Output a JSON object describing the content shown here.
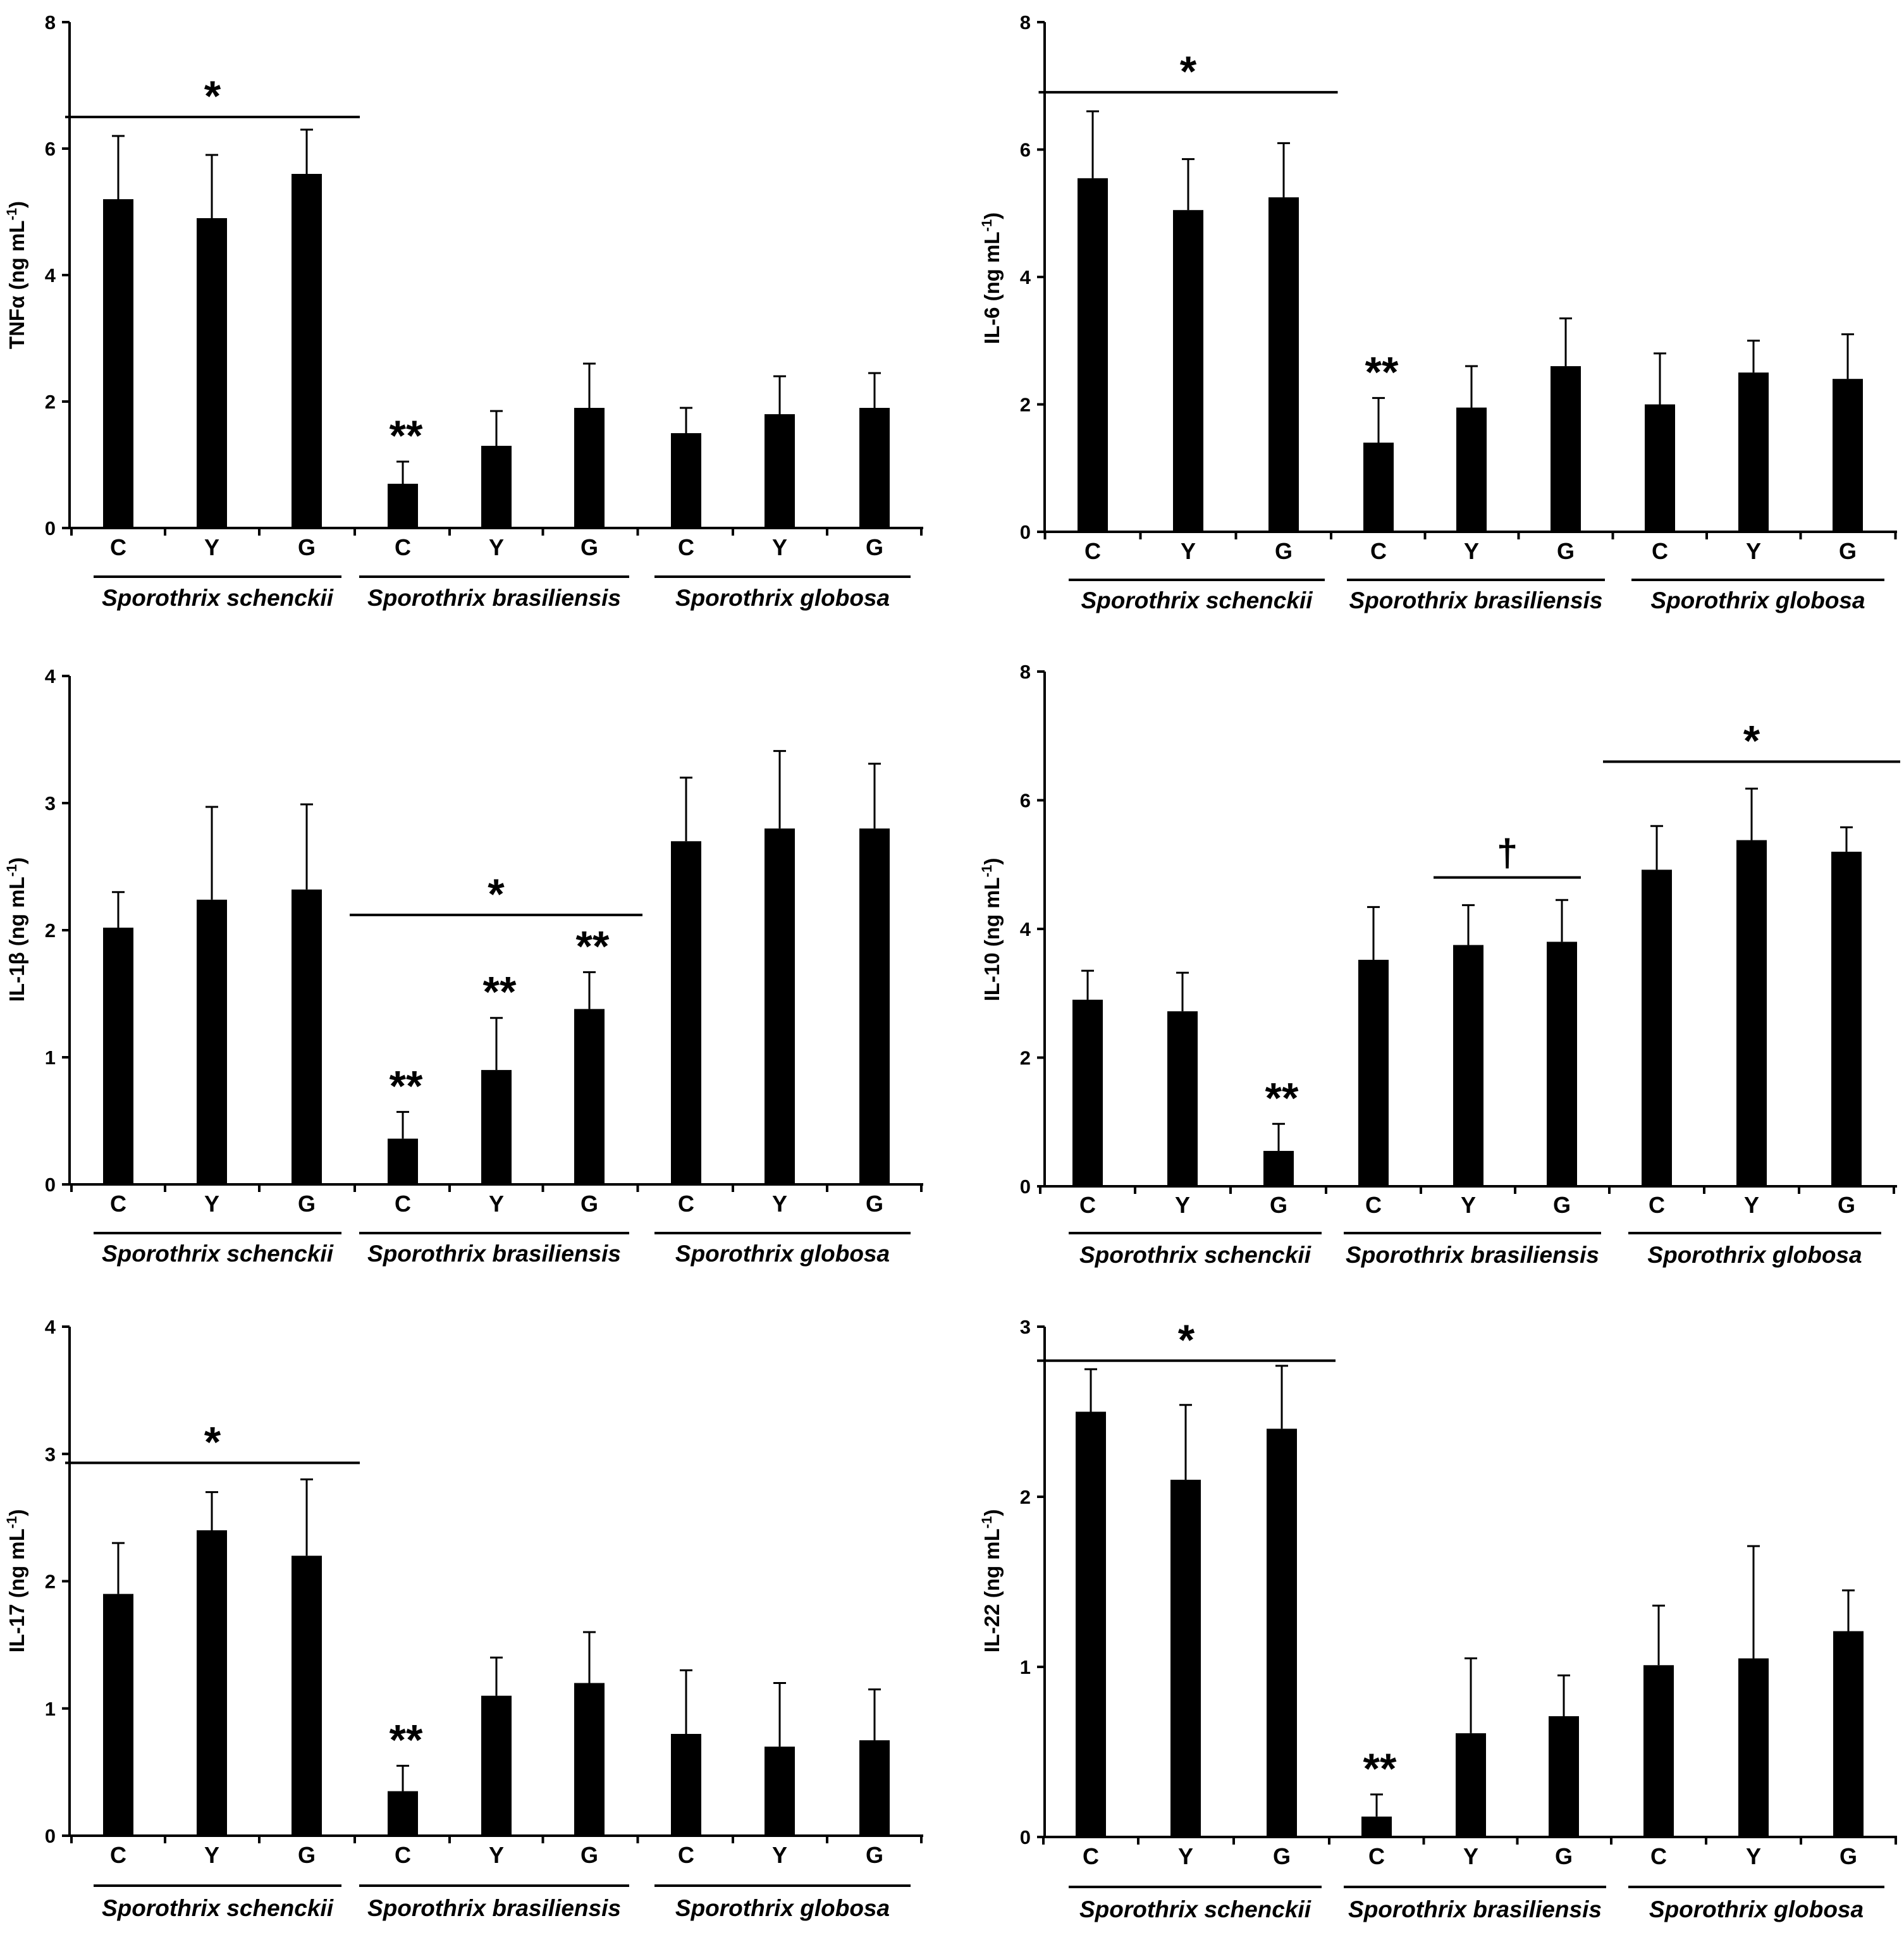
{
  "figure": {
    "bar_color": "#000000",
    "background": "#ffffff"
  },
  "chart_data": [
    {
      "type": "bar",
      "ylabel": "TNFα (ng mL",
      "ylabel_sup": "-1",
      "ylabel_end": ")",
      "ylim": [
        0,
        8
      ],
      "yticks": [
        "0",
        "2",
        "4",
        "6",
        "8"
      ],
      "ytick_values": [
        0,
        2,
        4,
        6,
        8
      ],
      "categories": [
        "C",
        "Y",
        "G",
        "C",
        "Y",
        "G",
        "C",
        "Y",
        "G"
      ],
      "groups": [
        "Sporothrix schenckii",
        "Sporothrix brasiliensis",
        "Sporothrix globosa"
      ],
      "values": [
        5.2,
        4.9,
        5.6,
        0.7,
        1.3,
        1.9,
        1.5,
        1.8,
        1.9
      ],
      "errors": [
        1.0,
        1.0,
        0.7,
        0.35,
        0.55,
        0.7,
        0.4,
        0.6,
        0.55
      ],
      "bar_marks": [
        {
          "index": 3,
          "text": "**"
        }
      ],
      "bracket_marks": [
        {
          "from": 0,
          "to": 2,
          "y": 6.5,
          "text": "*"
        }
      ]
    },
    {
      "type": "bar",
      "ylabel": "IL-6 (ng mL",
      "ylabel_sup": "-1",
      "ylabel_end": ")",
      "ylim": [
        0,
        8
      ],
      "yticks": [
        "0",
        "2",
        "4",
        "6",
        "8"
      ],
      "ytick_values": [
        0,
        2,
        4,
        6,
        8
      ],
      "categories": [
        "C",
        "Y",
        "G",
        "C",
        "Y",
        "G",
        "C",
        "Y",
        "G"
      ],
      "groups": [
        "Sporothrix schenckii",
        "Sporothrix brasiliensis",
        "Sporothrix globosa"
      ],
      "values": [
        5.55,
        5.05,
        5.25,
        1.4,
        1.95,
        2.6,
        2.0,
        2.5,
        2.4
      ],
      "errors": [
        1.05,
        0.8,
        0.85,
        0.7,
        0.65,
        0.75,
        0.8,
        0.5,
        0.7
      ],
      "bar_marks": [
        {
          "index": 3,
          "text": "**"
        }
      ],
      "bracket_marks": [
        {
          "from": 0,
          "to": 2,
          "y": 6.9,
          "text": "*"
        }
      ]
    },
    {
      "type": "bar",
      "ylabel": "IL-1β (ng mL",
      "ylabel_sup": "-1",
      "ylabel_end": ")",
      "ylim": [
        0,
        4
      ],
      "yticks": [
        "0",
        "1",
        "2",
        "3",
        "4"
      ],
      "ytick_values": [
        0,
        1,
        2,
        3,
        4
      ],
      "categories": [
        "C",
        "Y",
        "G",
        "C",
        "Y",
        "G",
        "C",
        "Y",
        "G"
      ],
      "groups": [
        "Sporothrix schenckii",
        "Sporothrix brasiliensis",
        "Sporothrix globosa"
      ],
      "values": [
        2.02,
        2.24,
        2.32,
        0.36,
        0.9,
        1.38,
        2.7,
        2.8,
        2.8
      ],
      "errors": [
        0.28,
        0.73,
        0.67,
        0.21,
        0.41,
        0.29,
        0.5,
        0.61,
        0.51
      ],
      "bar_marks": [
        {
          "index": 3,
          "text": "**"
        },
        {
          "index": 4,
          "text": "**"
        },
        {
          "index": 5,
          "text": "**"
        }
      ],
      "bracket_marks": [
        {
          "from": 3,
          "to": 5,
          "y": 2.12,
          "text": "*"
        }
      ]
    },
    {
      "type": "bar",
      "ylabel": "IL-10 (ng mL",
      "ylabel_sup": "-1",
      "ylabel_end": ")",
      "ylim": [
        0,
        8
      ],
      "yticks": [
        "0",
        "2",
        "4",
        "6",
        "8"
      ],
      "ytick_values": [
        0,
        2,
        4,
        6,
        8
      ],
      "categories": [
        "C",
        "Y",
        "G",
        "C",
        "Y",
        "G",
        "C",
        "Y",
        "G"
      ],
      "groups": [
        "Sporothrix schenckii",
        "Sporothrix brasiliensis",
        "Sporothrix globosa"
      ],
      "values": [
        2.9,
        2.72,
        0.55,
        3.52,
        3.75,
        3.8,
        4.92,
        5.38,
        5.2
      ],
      "errors": [
        0.45,
        0.6,
        0.42,
        0.82,
        0.62,
        0.65,
        0.68,
        0.8,
        0.38
      ],
      "bar_marks": [
        {
          "index": 2,
          "text": "**"
        }
      ],
      "bracket_marks": [
        {
          "from": 6,
          "to": 8,
          "y": 6.6,
          "text": "*"
        }
      ],
      "dagger_marks": [
        {
          "from": 4,
          "to": 5,
          "y": 4.8,
          "text": "†"
        }
      ]
    },
    {
      "type": "bar",
      "ylabel": "IL-17 (ng mL",
      "ylabel_sup": "-1",
      "ylabel_end": ")",
      "ylim": [
        0,
        4
      ],
      "yticks": [
        "0",
        "1",
        "2",
        "3",
        "4"
      ],
      "ytick_values": [
        0,
        1,
        2,
        3,
        4
      ],
      "categories": [
        "C",
        "Y",
        "G",
        "C",
        "Y",
        "G",
        "C",
        "Y",
        "G"
      ],
      "groups": [
        "Sporothrix schenckii",
        "Sporothrix brasiliensis",
        "Sporothrix globosa"
      ],
      "values": [
        1.9,
        2.4,
        2.2,
        0.35,
        1.1,
        1.2,
        0.8,
        0.7,
        0.75
      ],
      "errors": [
        0.4,
        0.3,
        0.6,
        0.2,
        0.3,
        0.4,
        0.5,
        0.5,
        0.4
      ],
      "bar_marks": [
        {
          "index": 3,
          "text": "**"
        }
      ],
      "bracket_marks": [
        {
          "from": 0,
          "to": 2,
          "y": 2.93,
          "text": "*"
        }
      ]
    },
    {
      "type": "bar",
      "ylabel": "IL-22 (ng mL",
      "ylabel_sup": "-1",
      "ylabel_end": ")",
      "ylim": [
        0,
        3
      ],
      "yticks": [
        "0",
        "1",
        "2",
        "3"
      ],
      "ytick_values": [
        0,
        1,
        2,
        3
      ],
      "categories": [
        "C",
        "Y",
        "G",
        "C",
        "Y",
        "G",
        "C",
        "Y",
        "G"
      ],
      "groups": [
        "Sporothrix schenckii",
        "Sporothrix brasiliensis",
        "Sporothrix globosa"
      ],
      "values": [
        2.5,
        2.1,
        2.4,
        0.12,
        0.61,
        0.71,
        1.01,
        1.05,
        1.21
      ],
      "errors": [
        0.25,
        0.44,
        0.37,
        0.13,
        0.44,
        0.24,
        0.35,
        0.66,
        0.24
      ],
      "bar_marks": [
        {
          "index": 3,
          "text": "**"
        }
      ],
      "bracket_marks": [
        {
          "from": 0,
          "to": 2,
          "y": 2.8,
          "text": "*"
        }
      ]
    }
  ]
}
